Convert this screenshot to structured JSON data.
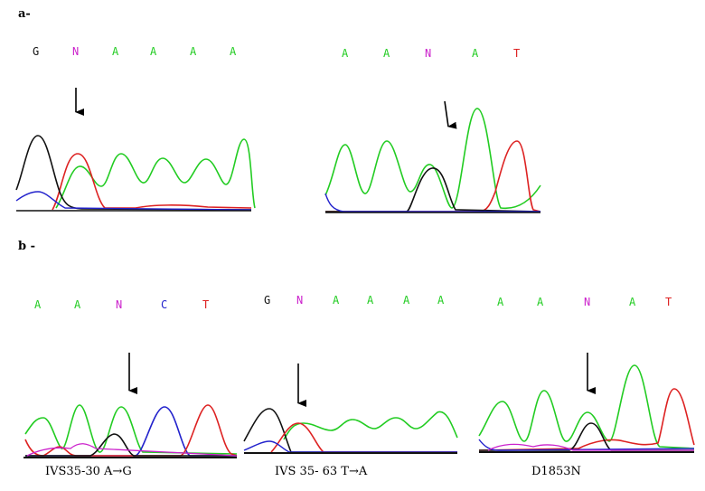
{
  "panels": {
    "a": {
      "label": "a-",
      "left_sequence": [
        "G",
        "N",
        "A",
        "A",
        "A",
        "A"
      ],
      "right_sequence": [
        "A",
        "A",
        "N",
        "A",
        "T"
      ]
    },
    "b": {
      "label": "b -",
      "seq1": [
        "A",
        "A",
        "N",
        "C",
        "T"
      ],
      "seq2": [
        "G",
        "N",
        "A",
        "A",
        "A",
        "A"
      ],
      "seq3": [
        "A",
        "A",
        "N",
        "A",
        "T"
      ],
      "captions": [
        "IVS35-30 A→G",
        "IVS 35- 63 T→A",
        "D1853N"
      ]
    }
  },
  "base_colors": {
    "A": "#22cc22",
    "C": "#2222cc",
    "G": "#111111",
    "T": "#dd2222",
    "N": "#cc22cc"
  },
  "trace_colors": {
    "A": "#22cc22",
    "C": "#2222cc",
    "G": "#111111",
    "T": "#dd2222"
  }
}
